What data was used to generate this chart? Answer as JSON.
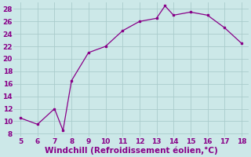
{
  "x_data": [
    5,
    6,
    7,
    7.5,
    8,
    9,
    10,
    11,
    12,
    13,
    13.5,
    14,
    15,
    16,
    17,
    18
  ],
  "y_data": [
    10.5,
    9.5,
    12.0,
    8.5,
    16.5,
    21.0,
    22.0,
    24.5,
    26.0,
    26.5,
    28.5,
    27.0,
    27.5,
    27.0,
    25.0,
    22.5
  ],
  "xlim": [
    4.6,
    18.4
  ],
  "ylim": [
    7.5,
    29.0
  ],
  "xticks": [
    5,
    6,
    7,
    8,
    9,
    10,
    11,
    12,
    13,
    14,
    15,
    16,
    17,
    18
  ],
  "yticks": [
    8,
    10,
    12,
    14,
    16,
    18,
    20,
    22,
    24,
    26,
    28
  ],
  "xlabel": "Windchill (Refroidissement éolien,°C)",
  "line_color": "#880088",
  "bg_color": "#cce8e8",
  "grid_color": "#aacccc",
  "tick_fontsize": 6.5,
  "label_fontsize": 7.5
}
